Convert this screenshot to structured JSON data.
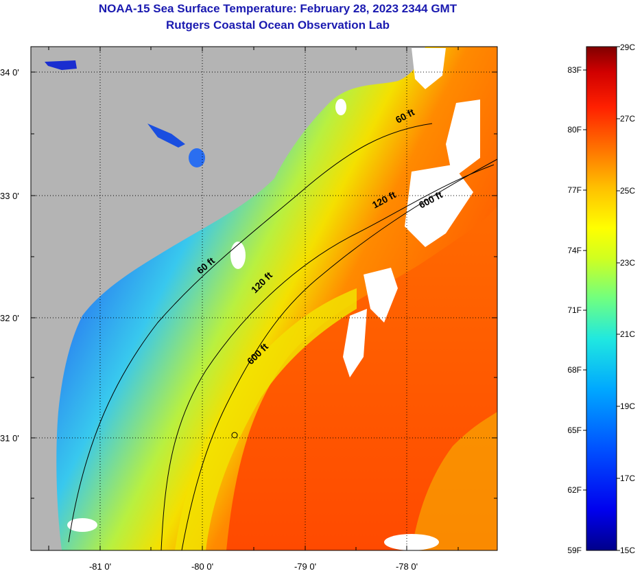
{
  "title": {
    "line1": "NOAA-15 Sea Surface Temperature:  February 28, 2023 2344 GMT",
    "line2": "Rutgers Coastal Ocean Observation Lab"
  },
  "map": {
    "lat_labels": [
      "34 0'",
      "33 0'",
      "32 0'",
      "31 0'"
    ],
    "lon_labels": [
      "-81 0'",
      "-80 0'",
      "-79 0'",
      "-78 0'"
    ],
    "contour_labels": [
      "60 ft",
      "120 ft",
      "600 ft",
      "60 ft",
      "120 ft",
      "600 ft"
    ],
    "colors": {
      "land": "#b4b4b4",
      "cloud": "#ffffff",
      "cold": "#1a2ed0",
      "cool": "#33a8ff",
      "mid": "#e8f000",
      "warm": "#ff5a00"
    }
  },
  "colorbar": {
    "fahrenheit": [
      "83F",
      "80F",
      "77F",
      "74F",
      "71F",
      "68F",
      "65F",
      "62F",
      "59F"
    ],
    "celsius": [
      "29C",
      "27C",
      "25C",
      "23C",
      "21C",
      "19C",
      "17C",
      "15C"
    ]
  }
}
